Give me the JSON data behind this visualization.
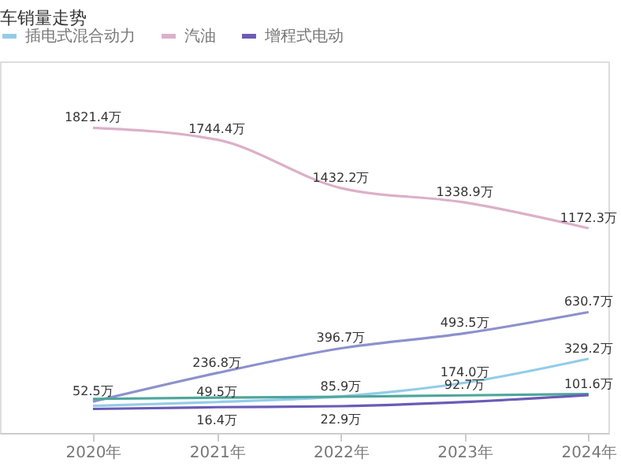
{
  "chart_data": {
    "type": "line",
    "title": "车销量走势",
    "x": [
      2020,
      2021,
      2022,
      2023,
      2024
    ],
    "xlim": [
      2019.25,
      2024.16
    ],
    "xticks": [
      {
        "value": 2020,
        "label": "2020年"
      },
      {
        "value": 2021,
        "label": "2021年"
      },
      {
        "value": 2022,
        "label": "2022年"
      },
      {
        "value": 2023,
        "label": "2023年"
      },
      {
        "value": 2024,
        "label": "2024年"
      }
    ],
    "ylim": [
      -150,
      2250
    ],
    "tick_labels": "x",
    "legend": "top left",
    "marker": "none",
    "line_style": "solid",
    "series": [
      {
        "color": "#8c91cc",
        "values": [
          52.5,
          236.8,
          396.7,
          493.5,
          630.7
        ],
        "value_labels": [
          "52.5万",
          "236.8万",
          "396.7万",
          "493.5万",
          "630.7万"
        ]
      },
      {
        "name": "插电式混合动力",
        "color": "#93cce8",
        "values": [
          25,
          49.5,
          85.9,
          174.0,
          329.2
        ],
        "value_labels": [
          null,
          "49.5万",
          "85.9万",
          "174.0万",
          "329.2万"
        ]
      },
      {
        "name": "汽油",
        "color": "#dcb0c8",
        "values": [
          1821.4,
          1744.4,
          1432.2,
          1338.9,
          1172.3
        ],
        "value_labels": [
          "1821.4万",
          "1744.4万",
          "1432.2万",
          "1338.9万",
          "1172.3万"
        ]
      },
      {
        "color": "#4ea69c",
        "values": [
          70,
          78,
          84,
          92.7,
          101.6
        ],
        "value_labels": [
          null,
          null,
          null,
          "92.7万",
          "101.6万"
        ]
      },
      {
        "name": "增程式电动",
        "color": "#6b5bb5",
        "values": [
          5,
          16.4,
          22.9,
          50,
          95
        ],
        "value_labels": [
          null,
          "16.4万",
          "22.9万",
          null,
          null
        ]
      }
    ]
  }
}
